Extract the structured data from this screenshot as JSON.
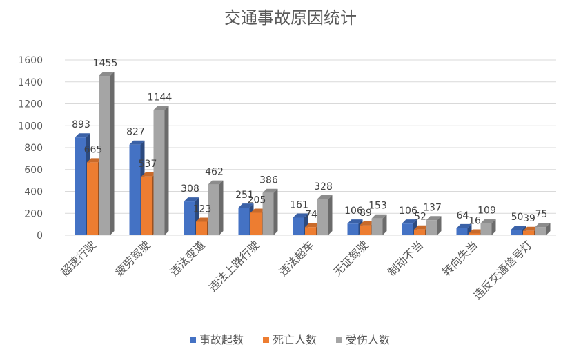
{
  "chart_data": {
    "type": "bar",
    "title": "交通事故原因统计",
    "xlabel": "",
    "ylabel": "",
    "ylim": [
      0,
      1600
    ],
    "yticks": [
      0,
      200,
      400,
      600,
      800,
      1000,
      1200,
      1400,
      1600
    ],
    "grid": true,
    "legend_position": "bottom",
    "categories": [
      "超速行驶",
      "疲劳驾驶",
      "违法变道",
      "违法上路行驶",
      "违法超车",
      "无证驾驶",
      "制动不当",
      "转向失当",
      "违反交通信号灯"
    ],
    "series": [
      {
        "name": "事故起数",
        "color": "#4472C4",
        "values": [
          893,
          827,
          308,
          251,
          161,
          106,
          106,
          64,
          50
        ]
      },
      {
        "name": "死亡人数",
        "color": "#ED7D31",
        "values": [
          665,
          537,
          123,
          205,
          74,
          89,
          52,
          16,
          39
        ]
      },
      {
        "name": "受伤人数",
        "color": "#A5A5A5",
        "values": [
          1455,
          1144,
          462,
          386,
          328,
          153,
          137,
          109,
          75
        ]
      }
    ]
  }
}
